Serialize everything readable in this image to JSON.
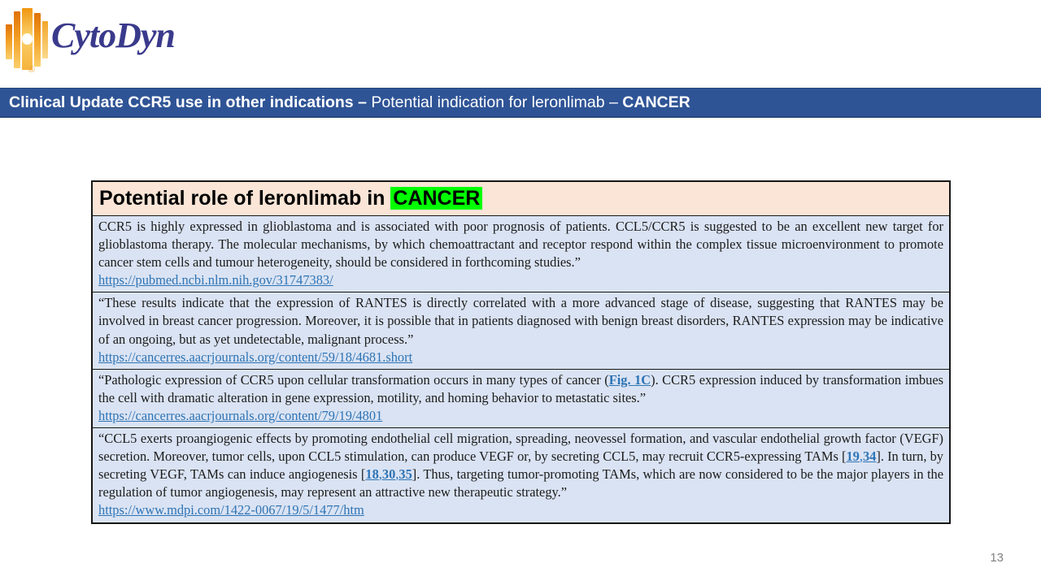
{
  "logo": {
    "brand": "CytoDyn",
    "registered_mark": "®"
  },
  "header": {
    "bold_prefix": "Clinical Update CCR5 use in other indications – ",
    "regular_middle": "Potential indication for leronlimab – ",
    "bold_suffix": "CANCER"
  },
  "table": {
    "title": {
      "prefix": "Potential role of leronlimab in ",
      "highlight": "CANCER"
    },
    "rows": [
      {
        "segments": [
          {
            "t": "CCR5 is highly expressed in glioblastoma and is associated with poor prognosis of patients. CCL5/CCR5 is suggested to be an excellent new target for glioblastoma therapy. The molecular mechanisms, by which chemoattractant and receptor respond within the complex tissue microenvironment to promote cancer stem cells and tumour heterogeneity, should be considered in forthcoming studies.”",
            "style": "text"
          }
        ],
        "link": "https://pubmed.ncbi.nlm.nih.gov/31747383/"
      },
      {
        "segments": [
          {
            "t": "“These results indicate that the expression of RANTES is directly correlated with a more advanced stage of disease, suggesting that RANTES may be involved in breast cancer progression. Moreover, it is possible that in patients diagnosed with benign breast disorders, RANTES expression may be indicative of an ongoing, but as yet undetectable, malignant process.”",
            "style": "text"
          }
        ],
        "link": "https://cancerres.aacrjournals.org/content/59/18/4681.short"
      },
      {
        "segments": [
          {
            "t": "“Pathologic expression of CCR5 upon cellular transformation occurs in many types of cancer (",
            "style": "text"
          },
          {
            "t": "Fig. 1C",
            "style": "reflink"
          },
          {
            "t": "). CCR5 expression induced by transformation imbues the cell with dramatic alteration in gene expression, motility, and homing behavior to metastatic sites.”",
            "style": "text"
          }
        ],
        "link": "https://cancerres.aacrjournals.org/content/79/19/4801"
      },
      {
        "segments": [
          {
            "t": "“CCL5 exerts proangiogenic effects by promoting endothelial cell migration, spreading, neovessel formation, and vascular endothelial growth factor (VEGF) secretion. Moreover, tumor cells, upon CCL5 stimulation, can produce VEGF or, by secreting CCL5, may recruit CCR5-expressing TAMs [",
            "style": "text"
          },
          {
            "t": "19",
            "style": "reflink"
          },
          {
            "t": ",",
            "style": "refsep"
          },
          {
            "t": "34",
            "style": "reflink"
          },
          {
            "t": "]. In turn, by secreting VEGF, TAMs can induce angiogenesis [",
            "style": "text"
          },
          {
            "t": "18",
            "style": "reflink"
          },
          {
            "t": ",",
            "style": "refsep"
          },
          {
            "t": "30",
            "style": "reflink"
          },
          {
            "t": ",",
            "style": "refsep"
          },
          {
            "t": "35",
            "style": "reflink"
          },
          {
            "t": "]. Thus, targeting tumor-promoting TAMs, which are now considered to be the major players in the regulation of tumor angiogenesis, may represent an attractive new therapeutic strategy.”",
            "style": "text"
          }
        ],
        "link": "https://www.mdpi.com/1422-0067/19/5/1477/htm"
      }
    ]
  },
  "page_number": "13",
  "colors": {
    "header_blue": "#2F5496",
    "title_row_peach": "#FBE5D6",
    "row_light_blue": "#DAE3F3",
    "highlight_green": "#00FF00",
    "link_blue": "#2E74B5",
    "logo_navy": "#3A3A8C",
    "logo_orange": "#E8860B",
    "page_number_gray": "#808080"
  }
}
